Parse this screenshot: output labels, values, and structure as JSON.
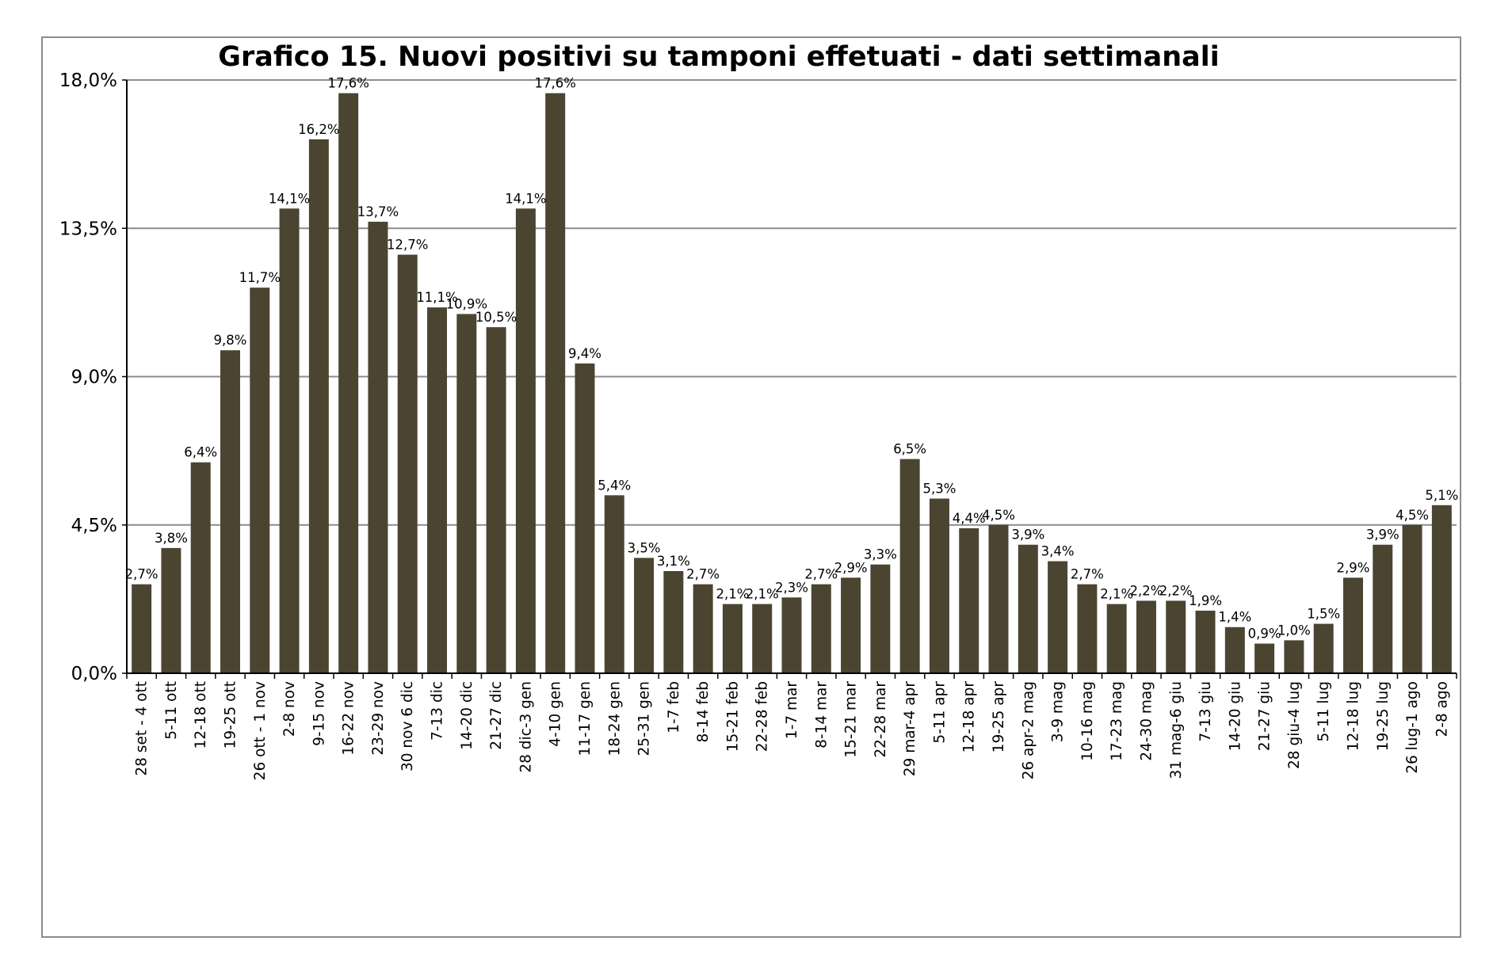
{
  "chart_data": {
    "type": "bar",
    "title": "Grafico 15. Nuovi positivi su tamponi effetuati  - dati settimanali",
    "xlabel": "",
    "ylabel": "",
    "ylim": [
      0,
      18
    ],
    "yticks": [
      0,
      4.5,
      9,
      13.5,
      18
    ],
    "ytick_labels": [
      "0,0%",
      "4,5%",
      "9,0%",
      "13,5%",
      "18,0%"
    ],
    "grid": true,
    "legend": "none",
    "bar_color": "#4a4431",
    "categories": [
      "28 set - 4 ott",
      "5-11 ott",
      "12-18 ott",
      "19-25 ott",
      "26 ott - 1 nov",
      "2-8 nov",
      "9-15 nov",
      "16-22 nov",
      "23-29 nov",
      "30 nov 6 dic",
      "7-13 dic",
      "14-20 dic",
      "21-27 dic",
      "28 dic-3 gen",
      "4-10 gen",
      "11-17 gen",
      "18-24 gen",
      "25-31 gen",
      "1-7 feb",
      "8-14 feb",
      "15-21 feb",
      "22-28 feb",
      "1-7 mar",
      "8-14 mar",
      "15-21 mar",
      "22-28 mar",
      "29 mar-4 apr",
      "5-11 apr",
      "12-18 apr",
      "19-25 apr",
      "26 apr-2 mag",
      "3-9 mag",
      "10-16 mag",
      "17-23 mag",
      "24-30 mag",
      "31 mag-6 giu",
      "7-13 giu",
      "14-20 giu",
      "21-27 giu",
      "28 giu-4 lug",
      "5-11 lug",
      "12-18 lug",
      "19-25 lug",
      "26 lug-1 ago",
      "2-8 ago"
    ],
    "values": [
      2.7,
      3.8,
      6.4,
      9.8,
      11.7,
      14.1,
      16.2,
      17.6,
      13.7,
      12.7,
      11.1,
      10.9,
      10.5,
      14.1,
      17.6,
      9.4,
      5.4,
      3.5,
      3.1,
      2.7,
      2.1,
      2.1,
      2.3,
      2.7,
      2.9,
      3.3,
      6.5,
      5.3,
      4.4,
      4.5,
      3.9,
      3.4,
      2.7,
      2.1,
      2.2,
      2.2,
      1.9,
      1.4,
      0.9,
      1.0,
      1.5,
      2.9,
      3.9,
      4.5,
      5.1
    ],
    "data_labels": [
      "2,7%",
      "3,8%",
      "6,4%",
      "9,8%",
      "11,7%",
      "14,1%",
      "16,2%",
      "17,6%",
      "13,7%",
      "12,7%",
      "11,1%",
      "10,9%",
      "10,5%",
      "14,1%",
      "17,6%",
      "9,4%",
      "5,4%",
      "3,5%",
      "3,1%",
      "2,7%",
      "2,1%",
      "2,1%",
      "2,3%",
      "2,7%",
      "2,9%",
      "3,3%",
      "6,5%",
      "5,3%",
      "4,4%",
      "4,5%",
      "3,9%",
      "3,4%",
      "2,7%",
      "2,1%",
      "2,2%",
      "2,2%",
      "1,9%",
      "1,4%",
      "0,9%",
      "1,0%",
      "1,5%",
      "2,9%",
      "3,9%",
      "4,5%",
      "5,1%"
    ]
  }
}
